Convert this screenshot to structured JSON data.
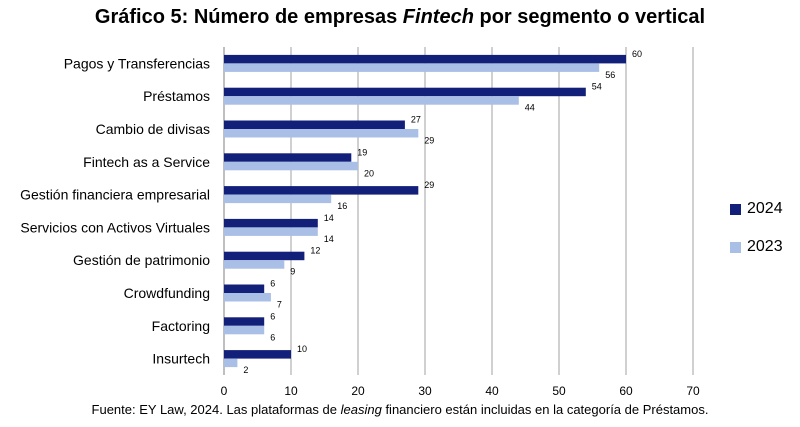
{
  "chart_data": {
    "type": "bar",
    "orientation": "horizontal",
    "title": {
      "prefix": "Gráfico 5: Número de empresas ",
      "emphasis": "Fintech",
      "suffix": " por segmento o vertical"
    },
    "categories": [
      "Pagos y Transferencias",
      "Préstamos",
      "Cambio de divisas",
      "Fintech as a Service",
      "Gestión financiera empresarial",
      "Servicios con Activos Virtuales",
      "Gestión de patrimonio",
      "Crowdfunding",
      "Factoring",
      "Insurtech"
    ],
    "series": [
      {
        "name": "2024",
        "color": "#13207a",
        "values": [
          60,
          54,
          27,
          19,
          29,
          14,
          12,
          6,
          6,
          10
        ]
      },
      {
        "name": "2023",
        "color": "#a9bfe6",
        "values": [
          56,
          44,
          29,
          20,
          16,
          14,
          9,
          7,
          6,
          2
        ]
      }
    ],
    "xlim": [
      0,
      70
    ],
    "xticks": [
      0,
      10,
      20,
      30,
      40,
      50,
      60,
      70
    ],
    "grid": true,
    "legend_position": "right",
    "data_labels": true
  },
  "footnote": {
    "prefix": "Fuente: EY Law, 2024. Las plataformas de ",
    "emphasis": "leasing",
    "suffix": " financiero están incluidas en la categoría de Préstamos."
  }
}
